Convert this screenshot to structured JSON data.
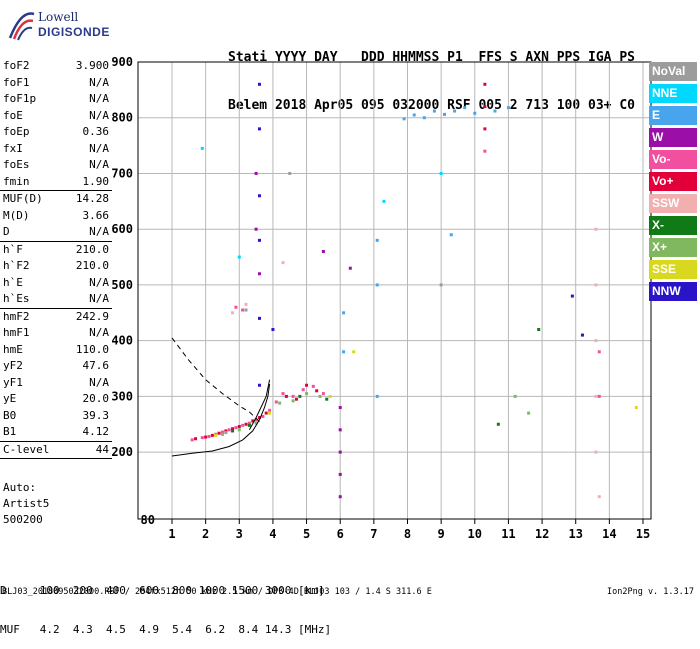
{
  "logo": {
    "line1": "Lowell",
    "line2": "DIGISONDE"
  },
  "header": {
    "row1": "Stati YYYY DAY   DDD HHMMSS P1  FFS S AXN PPS IGA PS",
    "row2": "Belem 2018 Apr05 095 032000 RSF 005 2 713 100 03+ C0"
  },
  "params_groups": [
    [
      [
        "foF2",
        "3.900"
      ],
      [
        "foF1",
        "N/A"
      ],
      [
        "foF1p",
        "N/A"
      ],
      [
        "foE",
        "N/A"
      ],
      [
        "foEp",
        "0.36"
      ],
      [
        "fxI",
        "N/A"
      ],
      [
        "foEs",
        "N/A"
      ],
      [
        "fmin",
        "1.90"
      ]
    ],
    [
      [
        "MUF(D)",
        "14.28"
      ],
      [
        "M(D)",
        "3.66"
      ],
      [
        "D",
        "N/A"
      ]
    ],
    [
      [
        "h`F",
        "210.0"
      ],
      [
        "h`F2",
        "210.0"
      ],
      [
        "h`E",
        "N/A"
      ],
      [
        "h`Es",
        "N/A"
      ]
    ],
    [
      [
        "hmF2",
        "242.9"
      ],
      [
        "hmF1",
        "N/A"
      ],
      [
        "hmE",
        "110.0"
      ],
      [
        "yF2",
        "47.6"
      ],
      [
        "yF1",
        "N/A"
      ],
      [
        "yE",
        "20.0"
      ],
      [
        "B0",
        "39.3"
      ],
      [
        "B1",
        "4.12"
      ]
    ],
    [
      [
        "C-level",
        "44"
      ]
    ]
  ],
  "auto": {
    "line1": "Auto:",
    "line2": "Artist5",
    "line3": "500200"
  },
  "legend": [
    {
      "label": "NoVal",
      "color": "#9c9c9c"
    },
    {
      "label": "NNE",
      "color": "#00d8ff"
    },
    {
      "label": "E",
      "color": "#46a5ec"
    },
    {
      "label": "W",
      "color": "#9c0ea8"
    },
    {
      "label": "Vo-",
      "color": "#f24fa0"
    },
    {
      "label": "Vo+",
      "color": "#e3003a"
    },
    {
      "label": "SSW",
      "color": "#f2afaf"
    },
    {
      "label": "X-",
      "color": "#0f7a16"
    },
    {
      "label": "X+",
      "color": "#7fb85e"
    },
    {
      "label": "SSE",
      "color": "#d8d81f"
    },
    {
      "label": "NNW",
      "color": "#2a14c8"
    }
  ],
  "bottom": {
    "row1": "D     100  200  400  600  800 1000 1500 3000 [km]",
    "row2": "MUF   4.2  4.3  4.5  4.9  5.4  6.2  8.4 14.3 [MHz]"
  },
  "footer": {
    "left": "BLJ03_2018095032000.RSF / 284fx512h 50 kHz 2.5 km / DPS-4D BLJ03 103 / 1.4 S 311.6 E",
    "right": "Ion2Png v. 1.3.17"
  },
  "chart_data": {
    "type": "scatter",
    "title": "",
    "xlabel": "",
    "ylabel": "",
    "xlim": [
      0.8,
      15
    ],
    "ylim": [
      80,
      900
    ],
    "x_ticks": [
      1,
      2,
      3,
      4,
      5,
      6,
      7,
      8,
      9,
      10,
      11,
      12,
      13,
      14,
      15
    ],
    "y_ticks": [
      200,
      300,
      400,
      500,
      600,
      700,
      800,
      900
    ],
    "y_tick_labels": [
      "200",
      "300",
      "400",
      "500",
      "600",
      "700",
      "800",
      "900"
    ],
    "y_bottom_label": "80",
    "grid": true,
    "series": [
      {
        "name": "Vo-",
        "color": "#f24fa0",
        "points": [
          [
            1.6,
            222
          ],
          [
            1.9,
            226
          ],
          [
            2.1,
            228
          ],
          [
            2.3,
            232
          ],
          [
            2.5,
            236
          ],
          [
            2.7,
            240
          ],
          [
            2.9,
            244
          ],
          [
            3.1,
            248
          ],
          [
            3.3,
            252
          ],
          [
            3.5,
            258
          ],
          [
            3.7,
            264
          ],
          [
            3.9,
            275
          ],
          [
            4.1,
            290
          ],
          [
            4.3,
            305
          ],
          [
            4.6,
            300
          ],
          [
            4.9,
            312
          ],
          [
            5.2,
            318
          ],
          [
            5.5,
            305
          ],
          [
            2.9,
            460
          ],
          [
            3.1,
            455
          ],
          [
            10.3,
            740
          ],
          [
            13.7,
            300
          ],
          [
            13.7,
            380
          ]
        ]
      },
      {
        "name": "Vo+",
        "color": "#e3003a",
        "points": [
          [
            1.7,
            224
          ],
          [
            2.0,
            227
          ],
          [
            2.2,
            230
          ],
          [
            2.4,
            234
          ],
          [
            2.6,
            238
          ],
          [
            2.8,
            242
          ],
          [
            3.0,
            246
          ],
          [
            3.2,
            250
          ],
          [
            3.4,
            256
          ],
          [
            3.6,
            262
          ],
          [
            3.8,
            270
          ],
          [
            4.4,
            300
          ],
          [
            4.7,
            295
          ],
          [
            5.0,
            320
          ],
          [
            5.3,
            310
          ],
          [
            10.3,
            860
          ],
          [
            10.3,
            820
          ],
          [
            10.3,
            780
          ]
        ]
      },
      {
        "name": "E",
        "color": "#46a5ec",
        "points": [
          [
            7.9,
            798
          ],
          [
            8.2,
            805
          ],
          [
            8.5,
            800
          ],
          [
            8.8,
            812
          ],
          [
            9.1,
            806
          ],
          [
            9.4,
            812
          ],
          [
            9.7,
            818
          ],
          [
            10.0,
            808
          ],
          [
            10.6,
            812
          ],
          [
            11.0,
            818
          ],
          [
            7.1,
            580
          ],
          [
            7.1,
            500
          ],
          [
            7.1,
            300
          ],
          [
            9.3,
            590
          ],
          [
            6.1,
            450
          ],
          [
            6.1,
            380
          ]
        ]
      },
      {
        "name": "W",
        "color": "#9c0ea8",
        "points": [
          [
            6.0,
            280
          ],
          [
            6.0,
            240
          ],
          [
            6.0,
            200
          ],
          [
            6.0,
            160
          ],
          [
            6.0,
            120
          ],
          [
            3.5,
            700
          ],
          [
            3.5,
            600
          ],
          [
            3.6,
            520
          ],
          [
            6.3,
            530
          ],
          [
            5.5,
            560
          ]
        ]
      },
      {
        "name": "X+",
        "color": "#7fb85e",
        "points": [
          [
            2.5,
            232
          ],
          [
            3.0,
            240
          ],
          [
            3.5,
            252
          ],
          [
            4.2,
            288
          ],
          [
            4.6,
            292
          ],
          [
            5.0,
            305
          ],
          [
            5.4,
            300
          ],
          [
            11.2,
            300
          ],
          [
            11.6,
            270
          ]
        ]
      },
      {
        "name": "X-",
        "color": "#0f7a16",
        "points": [
          [
            2.8,
            238
          ],
          [
            3.3,
            248
          ],
          [
            4.8,
            300
          ],
          [
            5.6,
            295
          ],
          [
            11.9,
            420
          ],
          [
            10.7,
            250
          ]
        ]
      },
      {
        "name": "SSW",
        "color": "#f2afaf",
        "points": [
          [
            2.8,
            450
          ],
          [
            3.2,
            465
          ],
          [
            4.3,
            540
          ],
          [
            13.6,
            600
          ],
          [
            13.6,
            500
          ],
          [
            13.6,
            400
          ],
          [
            13.6,
            300
          ],
          [
            13.6,
            200
          ],
          [
            13.7,
            120
          ]
        ]
      },
      {
        "name": "SSE",
        "color": "#d8d81f",
        "points": [
          [
            2.3,
            230
          ],
          [
            3.9,
            270
          ],
          [
            5.7,
            300
          ],
          [
            6.4,
            380
          ],
          [
            14.8,
            280
          ]
        ]
      },
      {
        "name": "NNE",
        "color": "#00d8ff",
        "points": [
          [
            1.9,
            745
          ],
          [
            3.0,
            550
          ],
          [
            7.3,
            650
          ],
          [
            9.0,
            700
          ]
        ]
      },
      {
        "name": "NNW",
        "color": "#2a14c8",
        "points": [
          [
            3.6,
            860
          ],
          [
            3.6,
            780
          ],
          [
            3.6,
            660
          ],
          [
            3.6,
            580
          ],
          [
            3.6,
            440
          ],
          [
            3.6,
            320
          ],
          [
            4.0,
            420
          ],
          [
            13.2,
            410
          ],
          [
            12.9,
            480
          ]
        ]
      },
      {
        "name": "NoVal",
        "color": "#9c9c9c",
        "points": [
          [
            2.6,
            235
          ],
          [
            3.2,
            455
          ],
          [
            4.5,
            700
          ],
          [
            9.0,
            500
          ]
        ]
      }
    ],
    "curves": [
      {
        "name": "profile-dashed",
        "style": "dashed",
        "points": [
          [
            1.0,
            405
          ],
          [
            1.5,
            365
          ],
          [
            2.0,
            330
          ],
          [
            2.5,
            305
          ],
          [
            3.0,
            283
          ],
          [
            3.3,
            272
          ],
          [
            3.6,
            255
          ]
        ]
      },
      {
        "name": "profile-solid",
        "style": "solid",
        "points": [
          [
            1.0,
            193
          ],
          [
            1.6,
            198
          ],
          [
            2.2,
            202
          ],
          [
            2.7,
            210
          ],
          [
            3.1,
            222
          ],
          [
            3.4,
            238
          ],
          [
            3.6,
            258
          ],
          [
            3.75,
            280
          ],
          [
            3.85,
            300
          ],
          [
            3.9,
            322
          ]
        ]
      },
      {
        "name": "trace-solid-2",
        "style": "solid",
        "points": [
          [
            3.3,
            240
          ],
          [
            3.5,
            262
          ],
          [
            3.8,
            300
          ],
          [
            3.9,
            330
          ]
        ]
      }
    ]
  }
}
